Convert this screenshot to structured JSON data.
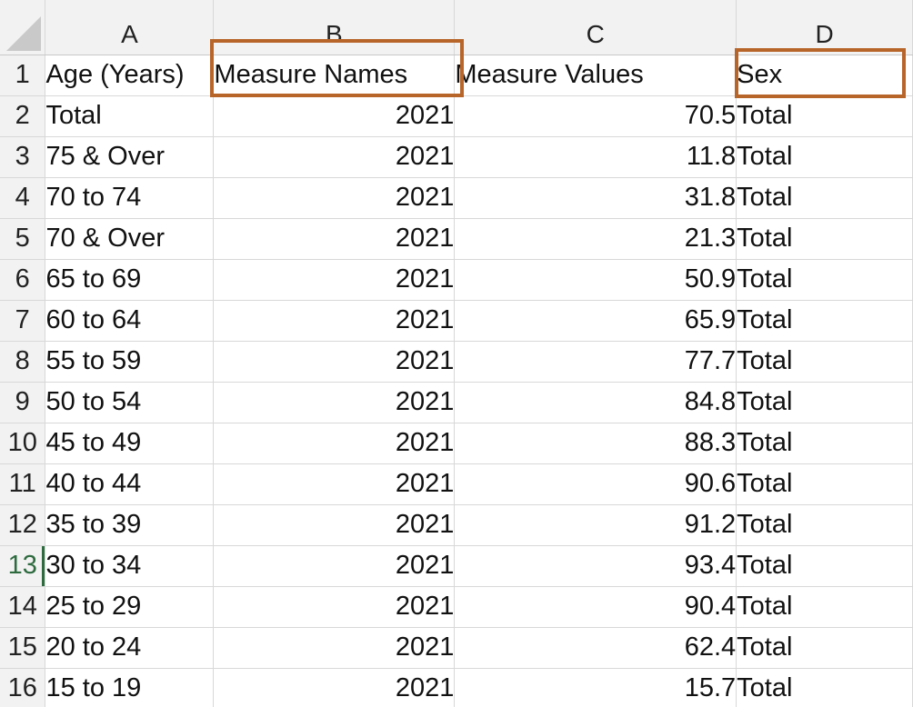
{
  "columns": [
    "A",
    "B",
    "C",
    "D"
  ],
  "header_row": {
    "row_number": "1",
    "age": "Age (Years)",
    "measure_names": "Measure Names",
    "measure_values": "Measure Values",
    "sex": "Sex"
  },
  "rows": [
    {
      "n": "2",
      "age": "Total",
      "year": "2021",
      "value": "70.5",
      "sex": "Total"
    },
    {
      "n": "3",
      "age": "75 & Over",
      "year": "2021",
      "value": "11.8",
      "sex": "Total"
    },
    {
      "n": "4",
      "age": "70 to 74",
      "year": "2021",
      "value": "31.8",
      "sex": "Total"
    },
    {
      "n": "5",
      "age": "70 & Over",
      "year": "2021",
      "value": "21.3",
      "sex": "Total"
    },
    {
      "n": "6",
      "age": "65 to 69",
      "year": "2021",
      "value": "50.9",
      "sex": "Total"
    },
    {
      "n": "7",
      "age": "60 to 64",
      "year": "2021",
      "value": "65.9",
      "sex": "Total"
    },
    {
      "n": "8",
      "age": "55 to 59",
      "year": "2021",
      "value": "77.7",
      "sex": "Total"
    },
    {
      "n": "9",
      "age": "50 to 54",
      "year": "2021",
      "value": "84.8",
      "sex": "Total"
    },
    {
      "n": "10",
      "age": "45 to 49",
      "year": "2021",
      "value": "88.3",
      "sex": "Total"
    },
    {
      "n": "11",
      "age": "40 to 44",
      "year": "2021",
      "value": "90.6",
      "sex": "Total"
    },
    {
      "n": "12",
      "age": "35 to 39",
      "year": "2021",
      "value": "91.2",
      "sex": "Total"
    },
    {
      "n": "13",
      "age": "30 to 34",
      "year": "2021",
      "value": "93.4",
      "sex": "Total"
    },
    {
      "n": "14",
      "age": "25 to 29",
      "year": "2021",
      "value": "90.4",
      "sex": "Total"
    },
    {
      "n": "15",
      "age": "20 to 24",
      "year": "2021",
      "value": "62.4",
      "sex": "Total"
    },
    {
      "n": "16",
      "age": "15 to 19",
      "year": "2021",
      "value": "15.7",
      "sex": "Total"
    }
  ],
  "active_row": "13",
  "highlight_color": "#b8652a",
  "active_row_color": "#2e6b3f"
}
